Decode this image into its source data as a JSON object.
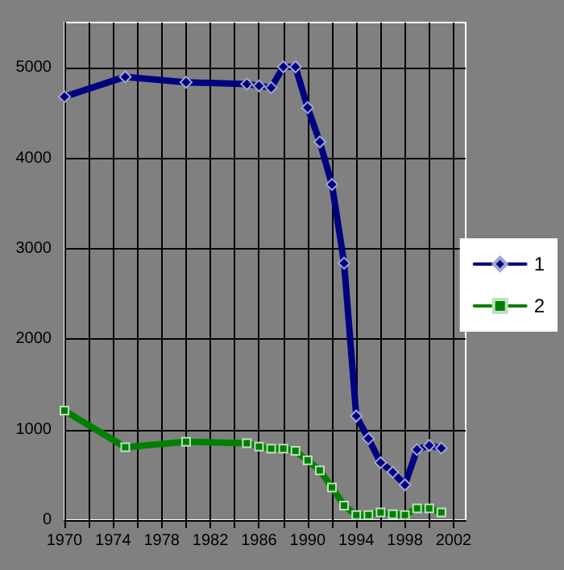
{
  "chart_data": {
    "type": "line",
    "xlim": [
      1970,
      2003
    ],
    "xticks": [
      1970,
      {
        "value": 1972,
        "label": null
      },
      1974,
      {
        "value": 1976,
        "label": null
      },
      1978,
      {
        "value": 1980,
        "label": null
      },
      1982,
      {
        "value": 1984,
        "label": null
      },
      1986,
      {
        "value": 1988,
        "label": null
      },
      1990,
      {
        "value": 1992,
        "label": null
      },
      1994,
      {
        "value": 1996,
        "label": null
      },
      1998,
      {
        "value": 2000,
        "label": null
      },
      2002
    ],
    "ylim": [
      0,
      5500
    ],
    "yticks": [
      0,
      1000,
      2000,
      3000,
      4000,
      5000
    ],
    "grid": true,
    "legend": "right",
    "line_style": "solid",
    "series": [
      {
        "name": "1",
        "color": "#000080",
        "marker": "diamond",
        "x": [
          1970,
          1975,
          1980,
          1985,
          1986,
          1987,
          1988,
          1989,
          1990,
          1991,
          1992,
          1993,
          1994,
          1995,
          1996,
          1997,
          1998,
          1999,
          2000,
          2001
        ],
        "values": [
          4680,
          4900,
          4840,
          4820,
          4800,
          4780,
          5010,
          5010,
          4560,
          4180,
          3710,
          2840,
          1150,
          900,
          635,
          530,
          390,
          780,
          825,
          795
        ]
      },
      {
        "name": "2",
        "color": "#008000",
        "marker": "square",
        "x": [
          1970,
          1975,
          1980,
          1985,
          1986,
          1987,
          1988,
          1989,
          1990,
          1991,
          1992,
          1993,
          1994,
          1995,
          1996,
          1997,
          1998,
          1999,
          2000,
          2001
        ],
        "values": [
          1210,
          805,
          865,
          850,
          813,
          790,
          790,
          765,
          660,
          550,
          360,
          160,
          55,
          55,
          85,
          65,
          55,
          130,
          130,
          85
        ]
      }
    ]
  }
}
